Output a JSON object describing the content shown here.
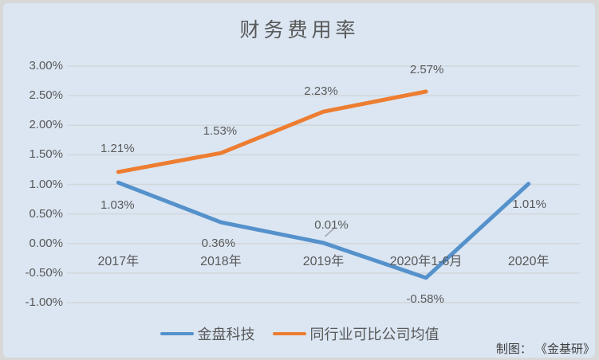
{
  "credit": "制图： 《金基研》",
  "chart_data": {
    "type": "line",
    "title": "财务费用率",
    "categories": [
      "2017年",
      "2018年",
      "2019年",
      "2020年1-6月",
      "2020年"
    ],
    "series": [
      {
        "name": "金盘科技",
        "color": "#5591cb",
        "values": [
          1.03,
          0.36,
          0.01,
          -0.58,
          1.01
        ],
        "labels": [
          "1.03%",
          "0.36%",
          "0.01%",
          "-0.58%",
          "1.01%"
        ]
      },
      {
        "name": "同行业可比公司均值",
        "color": "#ed7d31",
        "values": [
          1.21,
          1.53,
          2.23,
          2.57
        ],
        "labels": [
          "1.21%",
          "1.53%",
          "2.23%",
          "2.57%"
        ]
      }
    ],
    "y_ticks": [
      "3.00%",
      "2.50%",
      "2.00%",
      "1.50%",
      "1.00%",
      "0.50%",
      "0.00%",
      "-0.50%",
      "-1.00%"
    ],
    "ylim": [
      -1.0,
      3.0
    ],
    "xlabel": "",
    "ylabel": "",
    "grid": true,
    "legend_position": "bottom",
    "background_color": "#dbe6f2",
    "gridline_color": "#d2d6da",
    "text_color": "#595959"
  }
}
